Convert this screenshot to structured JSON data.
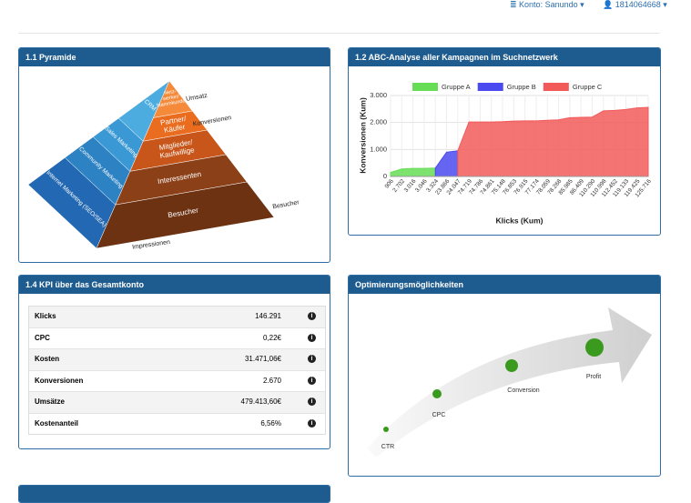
{
  "header": {
    "account": "Konto: Sanundo",
    "user": "1814064668"
  },
  "pyramid": {
    "title": "1.1 Pyramide",
    "levels": [
      [
        "Netz-",
        "werker/",
        "Stammkunden"
      ],
      [
        "Partner/",
        "Käufer"
      ],
      [
        "Mitglieder/",
        "Kaufwillige"
      ],
      [
        "Interessenten"
      ],
      [
        "Besucher"
      ]
    ],
    "channels": [
      "CRM",
      "Sales Marketing",
      "Community Marketing",
      "Internet Marketing (SEO/SEA)"
    ],
    "side_labels": [
      "Umsatz",
      "Konversionen",
      "Besucher",
      "Impressionen"
    ]
  },
  "chart_data": {
    "type": "area",
    "title": "1.2 ABC-Analyse aller Kampagnen im Suchnetzwerk",
    "x_label": "Klicks (Kum)",
    "y_label": "Konversionen (Kum)",
    "categories": [
      "906",
      "2.702",
      "3.016",
      "3.046",
      "3.324",
      "23.866",
      "24.047",
      "74.719",
      "74.786",
      "74.861",
      "75.148",
      "76.853",
      "76.915",
      "77.174",
      "78.059",
      "78.268",
      "85.985",
      "86.409",
      "110.290",
      "110.998",
      "112.452",
      "119.133",
      "119.425",
      "125.716"
    ],
    "series": [
      {
        "name": "Gruppe A",
        "color": "#66dd55",
        "values": [
          150,
          280,
          300,
          300,
          310,
          null,
          null,
          null,
          null,
          null,
          null,
          null,
          null,
          null,
          null,
          null,
          null,
          null,
          null,
          null,
          null,
          null,
          null,
          null
        ]
      },
      {
        "name": "Gruppe B",
        "color": "#4a4af0",
        "values": [
          null,
          null,
          null,
          null,
          310,
          900,
          950,
          null,
          null,
          null,
          null,
          null,
          null,
          null,
          null,
          null,
          null,
          null,
          null,
          null,
          null,
          null,
          null,
          null
        ]
      },
      {
        "name": "Gruppe C",
        "color": "#f25a5a",
        "values": [
          null,
          null,
          null,
          null,
          null,
          null,
          950,
          2020,
          2020,
          2020,
          2030,
          2050,
          2060,
          2060,
          2080,
          2100,
          2180,
          2190,
          2200,
          2430,
          2450,
          2480,
          2540,
          2560
        ]
      }
    ],
    "ylim": [
      0,
      3000
    ],
    "yticks": [
      0,
      {
        "value": 1000,
        "label": "1.000"
      },
      {
        "value": 2000,
        "label": "2.000"
      },
      {
        "value": 3000,
        "label": "3.000"
      }
    ],
    "grid": true,
    "legend": "top"
  },
  "kpi": {
    "title": "1.4 KPI über das Gesamtkonto",
    "rows": [
      [
        "Klicks",
        "146.291"
      ],
      [
        "CPC",
        "0,22€"
      ],
      [
        "Kosten",
        "31.471,06€"
      ],
      [
        "Konversionen",
        "2.670"
      ],
      [
        "Umsätze",
        "479.413,60€"
      ],
      [
        "Kostenanteil",
        "6,56%"
      ]
    ]
  },
  "optimierung": {
    "title": "Optimierungsmöglichkeiten",
    "steps": [
      "CTR",
      "CPC",
      "Conversion",
      "Profit"
    ]
  }
}
